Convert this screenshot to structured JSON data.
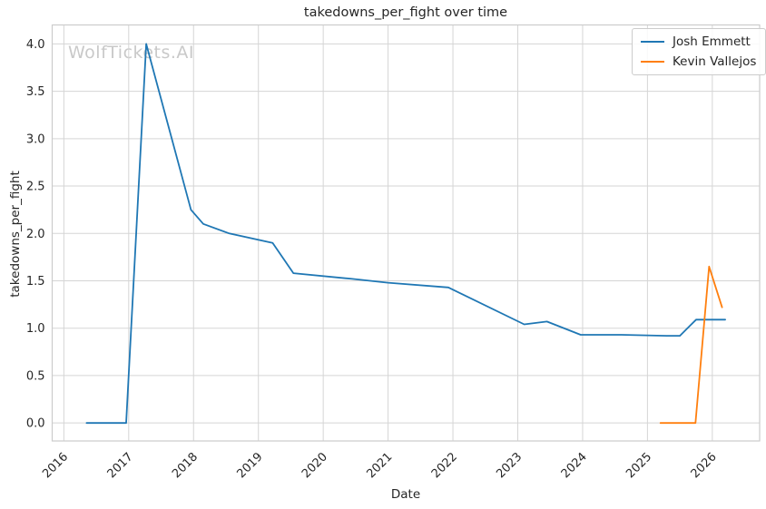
{
  "figure": {
    "title": "takedowns_per_fight over time",
    "xlabel": "Date",
    "ylabel": "takedowns_per_fight",
    "watermark": "WolfTickets.AI"
  },
  "legend": {
    "items": [
      {
        "label": "Josh Emmett",
        "color": "#1f77b4"
      },
      {
        "label": "Kevin Vallejos",
        "color": "#ff7f0e"
      }
    ]
  },
  "colors": {
    "grid": "#d5d5d5",
    "spine": "#cccccc",
    "tick_text": "#262626",
    "background": "#ffffff",
    "watermark": "#c9c9c9",
    "series_blue": "#1f77b4",
    "series_orange": "#ff7f0e"
  },
  "chart_data": {
    "type": "line",
    "title": "takedowns_per_fight over time",
    "xlabel": "Date",
    "ylabel": "takedowns_per_fight",
    "grid": true,
    "legend_position": "upper right",
    "xlim": [
      2015.82,
      2026.73
    ],
    "ylim": [
      -0.19,
      4.2
    ],
    "xticks": [
      2016,
      2017,
      2018,
      2019,
      2020,
      2021,
      2022,
      2023,
      2024,
      2025,
      2026
    ],
    "yticks": [
      0.0,
      0.5,
      1.0,
      1.5,
      2.0,
      2.5,
      3.0,
      3.5,
      4.0
    ],
    "series": [
      {
        "name": "Josh Emmett",
        "color": "#1f77b4",
        "points": [
          [
            2016.35,
            0.0
          ],
          [
            2016.96,
            0.0
          ],
          [
            2017.27,
            4.0
          ],
          [
            2017.96,
            2.25
          ],
          [
            2018.15,
            2.1
          ],
          [
            2018.55,
            2.0
          ],
          [
            2019.22,
            1.9
          ],
          [
            2019.54,
            1.58
          ],
          [
            2020.45,
            1.52
          ],
          [
            2021.0,
            1.48
          ],
          [
            2021.93,
            1.43
          ],
          [
            2023.1,
            1.04
          ],
          [
            2023.45,
            1.07
          ],
          [
            2023.97,
            0.93
          ],
          [
            2024.6,
            0.93
          ],
          [
            2025.3,
            0.92
          ],
          [
            2025.5,
            0.92
          ],
          [
            2025.75,
            1.09
          ],
          [
            2026.2,
            1.09
          ]
        ]
      },
      {
        "name": "Kevin Vallejos",
        "color": "#ff7f0e",
        "points": [
          [
            2025.2,
            0.0
          ],
          [
            2025.45,
            0.0
          ],
          [
            2025.74,
            0.0
          ],
          [
            2025.95,
            1.65
          ],
          [
            2026.15,
            1.22
          ]
        ]
      }
    ]
  }
}
